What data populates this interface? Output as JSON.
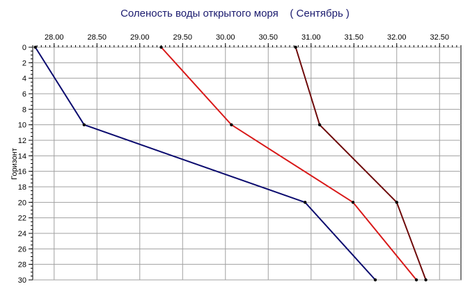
{
  "chart_data": {
    "type": "line",
    "title": "Соленость воды открытого моря    ( Сентябрь )",
    "xlabel": "",
    "ylabel": "Горизонт",
    "xlim": [
      27.75,
      32.75
    ],
    "ylim": [
      0,
      30
    ],
    "y_inverted": true,
    "x_axis_position": "top",
    "x_ticks": [
      "28.00",
      "28.50",
      "29.00",
      "29.50",
      "30.00",
      "30.50",
      "31.00",
      "31.50",
      "32.00",
      "32.50"
    ],
    "y_ticks": [
      "0",
      "2",
      "4",
      "6",
      "8",
      "10",
      "12",
      "14",
      "16",
      "18",
      "20",
      "22",
      "24",
      "26",
      "28",
      "30"
    ],
    "grid": true,
    "series": [
      {
        "color": "#0a0a6e",
        "x": [
          27.78,
          28.35,
          30.93,
          31.75
        ],
        "y": [
          0,
          10,
          20,
          30
        ]
      },
      {
        "color": "#d81818",
        "x": [
          29.25,
          30.07,
          31.49,
          32.23
        ],
        "y": [
          0,
          10,
          20,
          30
        ]
      },
      {
        "color": "#6e0a0a",
        "x": [
          30.82,
          31.1,
          32.0,
          32.34
        ],
        "y": [
          0,
          10,
          20,
          30
        ]
      }
    ]
  }
}
